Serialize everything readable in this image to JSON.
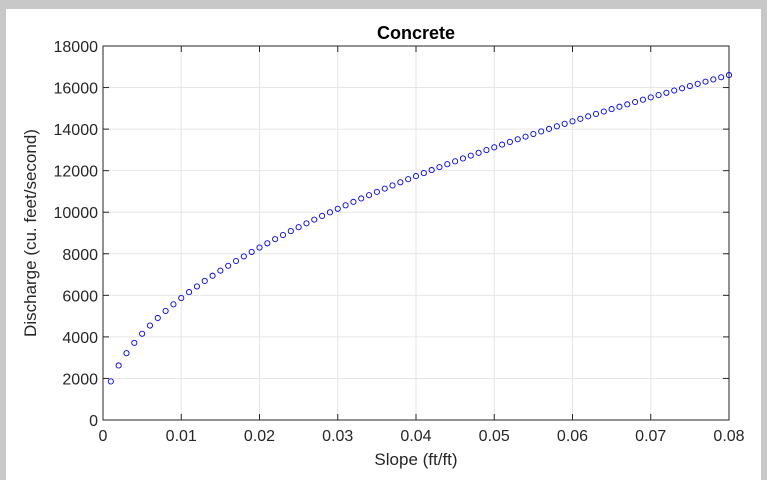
{
  "chart_data": {
    "type": "scatter",
    "title": "Concrete",
    "xlabel": "Slope (ft/ft)",
    "ylabel": "Discharge (cu. feet/second)",
    "xlim": [
      0,
      0.08
    ],
    "ylim": [
      0,
      18000
    ],
    "xticks": [
      "0",
      "0.01",
      "0.02",
      "0.03",
      "0.04",
      "0.05",
      "0.06",
      "0.07",
      "0.08"
    ],
    "yticks": [
      "0",
      "2000",
      "4000",
      "6000",
      "8000",
      "10000",
      "12000",
      "14000",
      "16000",
      "18000"
    ],
    "grid": true,
    "marker": "open-circle",
    "marker_color": "#0000ff",
    "series": [
      {
        "x_start": 0.001,
        "x_end": 0.08,
        "x_step": 0.001,
        "model": "sqrt",
        "y_at_x_end": 16600,
        "samples": [
          {
            "x": 0.001,
            "y": 1860
          },
          {
            "x": 0.01,
            "y": 5870
          },
          {
            "x": 0.02,
            "y": 8300
          },
          {
            "x": 0.03,
            "y": 10170
          },
          {
            "x": 0.04,
            "y": 11740
          },
          {
            "x": 0.05,
            "y": 13130
          },
          {
            "x": 0.06,
            "y": 14380
          },
          {
            "x": 0.07,
            "y": 15530
          },
          {
            "x": 0.08,
            "y": 16600
          }
        ]
      }
    ]
  }
}
